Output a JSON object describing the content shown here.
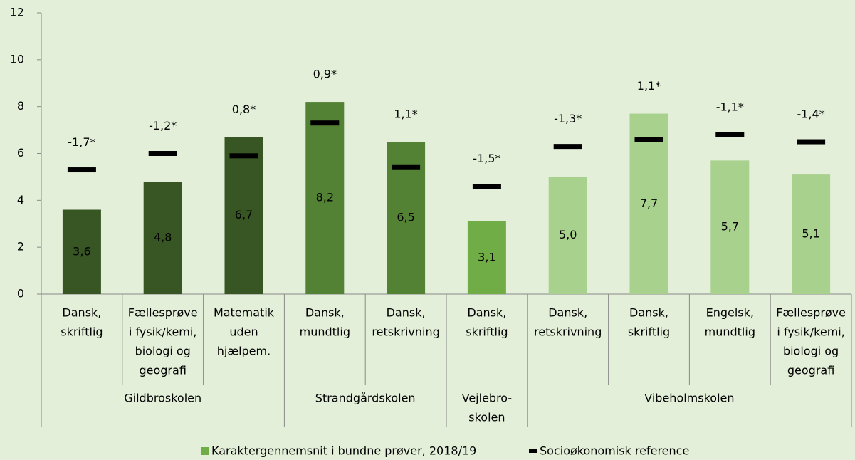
{
  "chart_data": {
    "type": "bar",
    "groups": [
      {
        "name": [
          "Gildbroskolen"
        ],
        "categories": [
          [
            "Dansk,",
            "skriftlig"
          ],
          [
            "Fællesprøve",
            "i fysik/kemi,",
            "biologi og",
            "geografi"
          ],
          [
            "Matematik",
            "uden",
            "hjælpem."
          ]
        ]
      },
      {
        "name": [
          "Strandgårdskolen"
        ],
        "categories": [
          [
            "Dansk,",
            "mundtlig"
          ],
          [
            "Dansk,",
            "retskrivning"
          ]
        ]
      },
      {
        "name": [
          "Vejlebro-",
          "skolen"
        ],
        "categories": [
          [
            "Dansk,",
            "skriftlig"
          ]
        ]
      },
      {
        "name": [
          "Vibeholmskolen"
        ],
        "categories": [
          [
            "Dansk,",
            "retskrivning"
          ],
          [
            "Dansk,",
            "skriftlig"
          ],
          [
            "Engelsk,",
            "mundtlig"
          ],
          [
            "Fællesprøve",
            "i fysik/kemi,",
            "biologi og",
            "geografi"
          ]
        ]
      }
    ],
    "series": [
      {
        "name": "Karaktergennemsnit i bundne prøver, 2018/19",
        "color": "#70ad47",
        "colors": [
          "#375623",
          "#375623",
          "#375623",
          "#548235",
          "#548235",
          "#70ad47",
          "#a9d18e",
          "#a9d18e",
          "#a9d18e",
          "#a9d18e"
        ],
        "values": [
          3.6,
          4.8,
          6.7,
          8.2,
          6.5,
          3.1,
          5.0,
          7.7,
          5.7,
          5.1
        ],
        "value_labels": [
          "3,6",
          "4,8",
          "6,7",
          "8,2",
          "6,5",
          "3,1",
          "5,0",
          "7,7",
          "5,7",
          "5,1"
        ]
      },
      {
        "name": "Socioøkonomisk reference",
        "color": "#000000",
        "values": [
          5.3,
          6.0,
          5.9,
          7.3,
          5.4,
          4.6,
          6.3,
          6.6,
          6.8,
          6.5
        ]
      }
    ],
    "annotations": [
      "-1,7*",
      "-1,2*",
      "0,8*",
      "0,9*",
      "1,1*",
      "-1,5*",
      "-1,3*",
      "1,1*",
      "-1,1*",
      "-1,4*"
    ],
    "ylim": [
      0,
      12
    ],
    "yticks": [
      0,
      2,
      4,
      6,
      8,
      10,
      12
    ]
  }
}
